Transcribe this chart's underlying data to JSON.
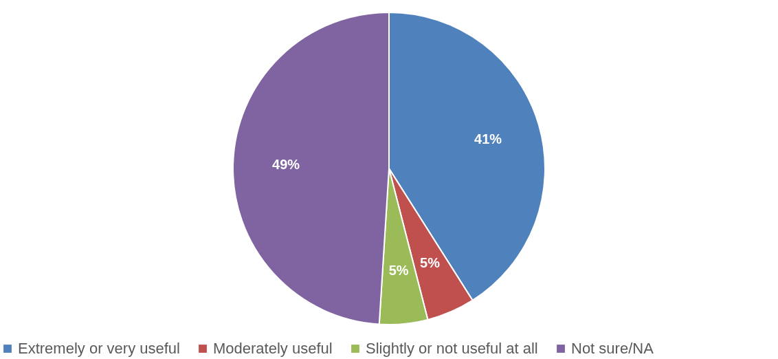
{
  "chart_data": {
    "type": "pie",
    "categories": [
      "Extremely or very useful",
      "Moderately useful",
      "Slightly or not useful at all",
      "Not sure/NA"
    ],
    "values": [
      41,
      5,
      5,
      49
    ],
    "value_labels": [
      "41%",
      "5%",
      "5%",
      "49%"
    ],
    "colors": [
      "#4f81bd",
      "#c0504d",
      "#9bbb59",
      "#8064a2"
    ],
    "legend": "bottom"
  }
}
